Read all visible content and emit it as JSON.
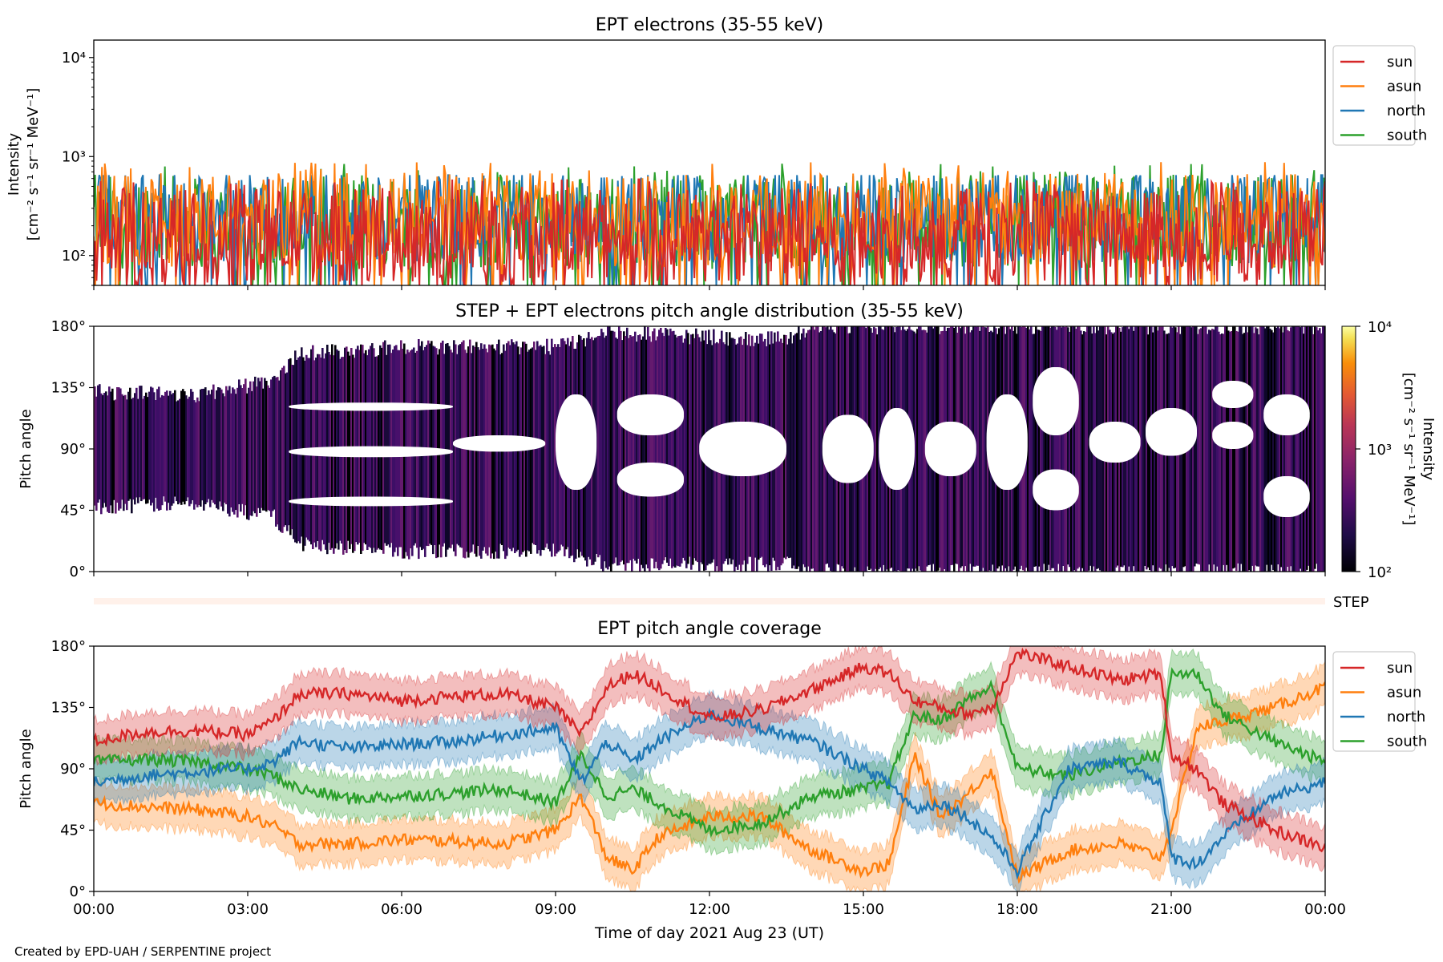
{
  "footer": {
    "credit": "Created by EPD-UAH / SERPENTINE project"
  },
  "colors": {
    "sun": "#d62728",
    "asun": "#ff7f0e",
    "north": "#1f77b4",
    "south": "#2ca02c",
    "step_strip": "#fff1ea"
  },
  "chart_data": [
    {
      "type": "line",
      "title": "EPT electrons (35-55 keV)",
      "ylabel_line1": "Intensity",
      "ylabel_line2": "[cm⁻² s⁻¹ sr⁻¹ MeV⁻¹]",
      "yscale": "log",
      "ylim": [
        50,
        15000
      ],
      "yticks": [
        {
          "value": 100,
          "label": "10²"
        },
        {
          "value": 1000,
          "label": "10³"
        },
        {
          "value": 10000,
          "label": "10⁴"
        }
      ],
      "xlim_hours": [
        0,
        24
      ],
      "legend_position": "upper-right-outside",
      "series": [
        {
          "name": "sun",
          "color": "#d62728",
          "median": 160,
          "min": 50,
          "max": 600
        },
        {
          "name": "asun",
          "color": "#ff7f0e",
          "median": 230,
          "min": 60,
          "max": 880
        },
        {
          "name": "north",
          "color": "#1f77b4",
          "median": 250,
          "min": 55,
          "max": 650
        },
        {
          "name": "south",
          "color": "#2ca02c",
          "median": 220,
          "min": 55,
          "max": 860
        }
      ]
    },
    {
      "type": "heatmap",
      "title": "STEP + EPT electrons pitch angle distribution (35-55 keV)",
      "ylabel": "Pitch angle",
      "ylim": [
        0,
        180
      ],
      "yticks": [
        "0°",
        "45°",
        "90°",
        "135°",
        "180°"
      ],
      "colorbar": {
        "label_line1": "Intensity",
        "label_line2": "[cm⁻² s⁻¹ sr⁻¹ MeV⁻¹]",
        "scale": "log",
        "range": [
          100,
          10000
        ],
        "ticks": [
          {
            "value": 100,
            "label": "10²"
          },
          {
            "value": 1000,
            "label": "10³"
          },
          {
            "value": 10000,
            "label": "10⁴"
          }
        ],
        "colormap": "inferno"
      },
      "coverage_envelope": [
        {
          "hour": 0,
          "low": 48,
          "high": 132
        },
        {
          "hour": 2,
          "low": 50,
          "high": 130
        },
        {
          "hour": 3.5,
          "low": 40,
          "high": 140
        },
        {
          "hour": 4,
          "low": 20,
          "high": 160
        },
        {
          "hour": 6,
          "low": 15,
          "high": 165
        },
        {
          "hour": 9,
          "low": 15,
          "high": 165
        },
        {
          "hour": 10,
          "low": 5,
          "high": 175
        },
        {
          "hour": 13.5,
          "low": 5,
          "high": 170
        },
        {
          "hour": 14,
          "low": 0,
          "high": 180
        },
        {
          "hour": 18,
          "low": 0,
          "high": 180
        },
        {
          "hour": 24,
          "low": 0,
          "high": 180
        }
      ]
    },
    {
      "type": "bar",
      "label": "STEP",
      "note_value": "STEP coverage strip"
    },
    {
      "type": "line",
      "title": "EPT pitch angle coverage",
      "xlabel": "Time of day 2021 Aug 23 (UT)",
      "ylabel": "Pitch angle",
      "ylim": [
        0,
        180
      ],
      "yticks": [
        "0°",
        "45°",
        "90°",
        "135°",
        "180°"
      ],
      "xticks": [
        "00:00",
        "03:00",
        "06:00",
        "09:00",
        "12:00",
        "15:00",
        "18:00",
        "21:00",
        "00:00"
      ],
      "xlim_hours": [
        0,
        24
      ],
      "band_halfwidth_deg": 15,
      "legend_position": "upper-right-outside",
      "series": [
        {
          "name": "sun",
          "color": "#d62728",
          "hours": [
            0,
            1,
            2,
            3,
            3.5,
            4,
            5,
            6,
            7,
            8,
            9,
            9.5,
            10,
            10.5,
            11,
            12,
            13,
            14,
            15,
            15.5,
            16,
            16.5,
            17,
            17.5,
            18,
            19,
            20,
            20.8,
            21,
            21.5,
            22,
            23,
            24
          ],
          "angles": [
            110,
            117,
            118,
            115,
            125,
            145,
            145,
            140,
            143,
            145,
            135,
            115,
            150,
            160,
            150,
            127,
            133,
            148,
            165,
            160,
            140,
            135,
            130,
            135,
            175,
            165,
            155,
            160,
            100,
            90,
            65,
            45,
            32
          ]
        },
        {
          "name": "asun",
          "color": "#ff7f0e",
          "hours": [
            0,
            1,
            2,
            3,
            3.5,
            4,
            5,
            6,
            7,
            8,
            9,
            9.5,
            10,
            10.5,
            11,
            12,
            13,
            14,
            15,
            15.5,
            16,
            16.5,
            17,
            17.5,
            18,
            19,
            20,
            20.8,
            21,
            21.5,
            22,
            23,
            24
          ],
          "angles": [
            65,
            62,
            60,
            55,
            48,
            35,
            35,
            38,
            37,
            35,
            45,
            70,
            25,
            15,
            40,
            55,
            55,
            30,
            15,
            20,
            100,
            55,
            70,
            90,
            10,
            30,
            35,
            25,
            45,
            120,
            125,
            135,
            150
          ]
        },
        {
          "name": "north",
          "color": "#1f77b4",
          "hours": [
            0,
            1,
            2,
            3,
            3.5,
            4,
            5,
            6,
            7,
            8,
            9,
            9.5,
            10,
            10.5,
            11,
            12,
            13,
            14,
            15,
            15.5,
            16,
            16.5,
            17,
            17.5,
            18,
            19,
            20,
            20.8,
            21,
            21.5,
            22,
            23,
            24
          ],
          "angles": [
            80,
            85,
            88,
            90,
            95,
            110,
            105,
            108,
            110,
            115,
            120,
            80,
            110,
            95,
            110,
            130,
            120,
            110,
            90,
            80,
            60,
            65,
            55,
            40,
            15,
            90,
            95,
            80,
            25,
            20,
            40,
            70,
            80
          ]
        },
        {
          "name": "south",
          "color": "#2ca02c",
          "hours": [
            0,
            1,
            2,
            3,
            3.5,
            4,
            5,
            6,
            7,
            8,
            9,
            9.5,
            10,
            10.5,
            11,
            12,
            13,
            14,
            15,
            15.5,
            16,
            16.5,
            17,
            17.5,
            18,
            19,
            20,
            20.8,
            21,
            21.5,
            22,
            23,
            24
          ],
          "angles": [
            95,
            97,
            95,
            90,
            85,
            75,
            68,
            70,
            72,
            75,
            65,
            100,
            70,
            75,
            65,
            45,
            50,
            70,
            75,
            80,
            130,
            125,
            140,
            150,
            90,
            85,
            95,
            100,
            160,
            160,
            130,
            110,
            95
          ]
        }
      ]
    }
  ]
}
